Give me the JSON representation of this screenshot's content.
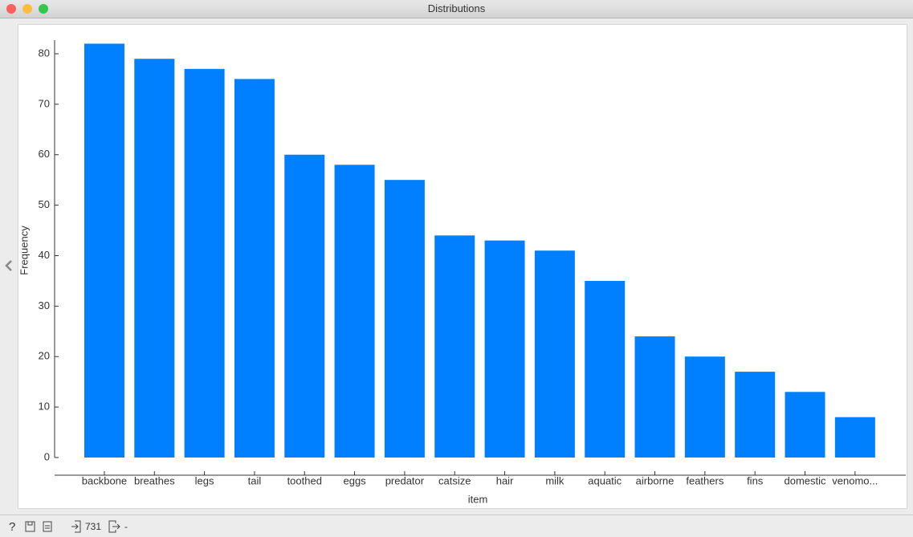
{
  "window": {
    "title": "Distributions"
  },
  "status_bar": {
    "input": "731",
    "output": "-"
  },
  "chart_data": {
    "type": "bar",
    "x_label": "item",
    "y_label": "Frequency",
    "categories": [
      "backbone",
      "breathes",
      "legs",
      "tail",
      "toothed",
      "eggs",
      "predator",
      "catsize",
      "hair",
      "milk",
      "aquatic",
      "airborne",
      "feathers",
      "fins",
      "domestic",
      "venomo..."
    ],
    "values": [
      82,
      79,
      77,
      75,
      60,
      58,
      55,
      44,
      43,
      41,
      35,
      24,
      20,
      17,
      13,
      8
    ],
    "color": "#0080ff",
    "ylim": [
      0,
      82
    ],
    "yticks": [
      0,
      10,
      20,
      30,
      40,
      50,
      60,
      70,
      80
    ],
    "grid": false
  }
}
